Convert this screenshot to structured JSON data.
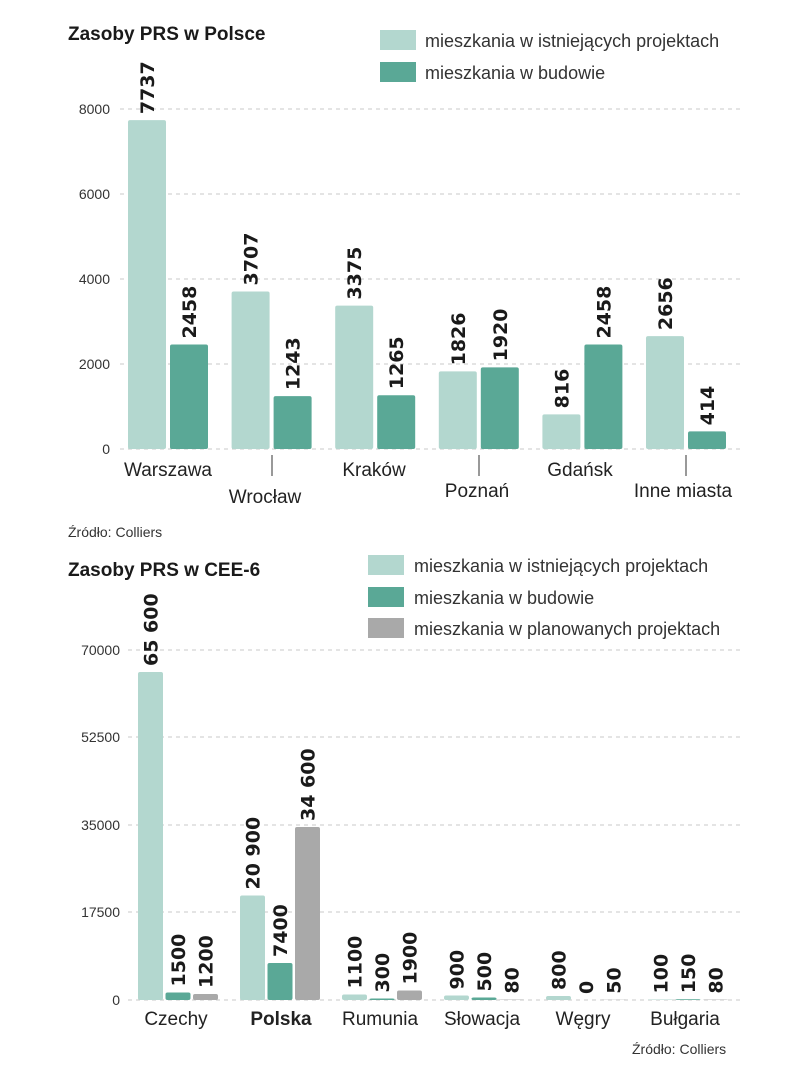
{
  "colors": {
    "existing": "#b3d7cf",
    "under_construction": "#5aa896",
    "planned": "#a9a9a9"
  },
  "chart_data": [
    {
      "type": "bar",
      "title": "Zasoby PRS w Polsce",
      "categories": [
        "Warszawa",
        "Wrocław",
        "Kraków",
        "Poznań",
        "Gdańsk",
        "Inne miasta"
      ],
      "series": [
        {
          "name": "mieszkania w istniejących projektach",
          "values": [
            7737,
            3707,
            3375,
            1826,
            816,
            2656
          ],
          "labels": [
            "7737",
            "3707",
            "3375",
            "1826",
            "816",
            "2656"
          ]
        },
        {
          "name": "mieszkania w budowie",
          "values": [
            2458,
            1243,
            1265,
            1920,
            2458,
            414
          ],
          "labels": [
            "2458",
            "1243",
            "1265",
            "1920",
            "2458",
            "414"
          ]
        }
      ],
      "yticks": [
        "0",
        "2000",
        "4000",
        "6000",
        "8000"
      ],
      "ylim": [
        0,
        8000
      ],
      "source": "Źródło:  Colliers"
    },
    {
      "type": "bar",
      "title": "Zasoby PRS w CEE-6",
      "categories": [
        "Czechy",
        "Polska",
        "Rumunia",
        "Słowacja",
        "Węgry",
        "Bułgaria"
      ],
      "series": [
        {
          "name": "mieszkania w istniejących projektach",
          "values": [
            65600,
            20900,
            1100,
            900,
            800,
            100
          ],
          "labels": [
            "65 600",
            "20 900",
            "1100",
            "900",
            "800",
            "100"
          ]
        },
        {
          "name": "mieszkania w budowie",
          "values": [
            1500,
            7400,
            300,
            500,
            0,
            150
          ],
          "labels": [
            "1500",
            "7400",
            "300",
            "500",
            "0",
            "150"
          ]
        },
        {
          "name": "mieszkania w planowanych projektach",
          "values": [
            1200,
            34600,
            1900,
            80,
            50,
            80
          ],
          "labels": [
            "1200",
            "34 600",
            "1900",
            "80",
            "50",
            "80"
          ]
        }
      ],
      "yticks": [
        "0",
        "17500",
        "35000",
        "52500",
        "70000"
      ],
      "ylim": [
        0,
        70000
      ],
      "source": "Źródło:  Colliers"
    }
  ]
}
